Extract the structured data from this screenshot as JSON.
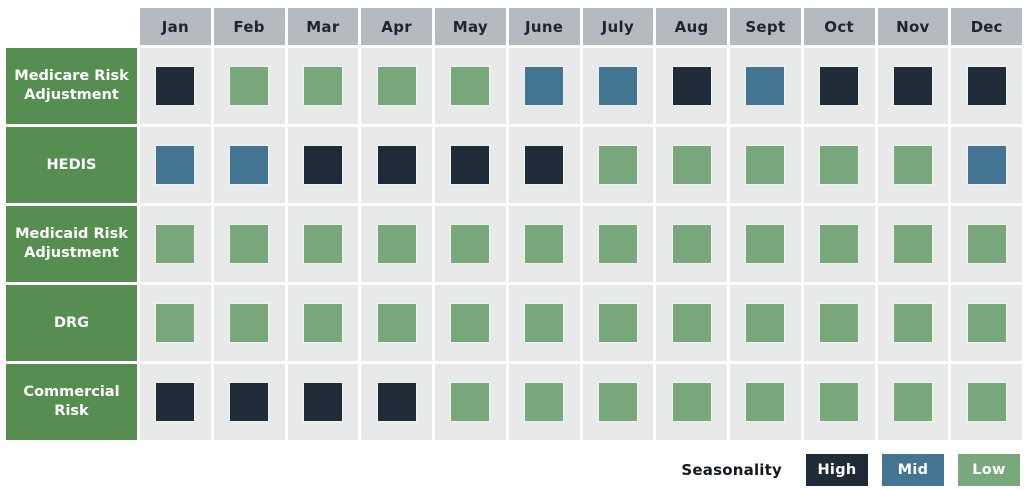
{
  "chart_data": {
    "type": "heatmap",
    "title": "Seasonality",
    "columns": [
      "Jan",
      "Feb",
      "Mar",
      "Apr",
      "May",
      "June",
      "July",
      "Aug",
      "Sept",
      "Oct",
      "Nov",
      "Dec"
    ],
    "rows": [
      {
        "name": "Medicare Risk Adjustment",
        "values": [
          "High",
          "Low",
          "Low",
          "Low",
          "Low",
          "Mid",
          "Mid",
          "High",
          "Mid",
          "High",
          "High",
          "High"
        ]
      },
      {
        "name": "HEDIS",
        "values": [
          "Mid",
          "Mid",
          "High",
          "High",
          "High",
          "High",
          "Low",
          "Low",
          "Low",
          "Low",
          "Low",
          "Mid"
        ]
      },
      {
        "name": "Medicaid Risk Adjustment",
        "values": [
          "Low",
          "Low",
          "Low",
          "Low",
          "Low",
          "Low",
          "Low",
          "Low",
          "Low",
          "Low",
          "Low",
          "Low"
        ]
      },
      {
        "name": "DRG",
        "values": [
          "Low",
          "Low",
          "Low",
          "Low",
          "Low",
          "Low",
          "Low",
          "Low",
          "Low",
          "Low",
          "Low",
          "Low"
        ]
      },
      {
        "name": "Commercial Risk",
        "values": [
          "High",
          "High",
          "High",
          "High",
          "Low",
          "Low",
          "Low",
          "Low",
          "Low",
          "Low",
          "Low",
          "Low"
        ]
      }
    ],
    "legend": {
      "title": "Seasonality",
      "items": [
        {
          "label": "High",
          "color": "#1f2c37"
        },
        {
          "label": "Mid",
          "color": "#437592"
        },
        {
          "label": "Low",
          "color": "#7aa87d"
        }
      ]
    },
    "layout": {
      "grid": "off",
      "legend_position": "bottom-right"
    }
  },
  "colors": {
    "high": "#1f2c37",
    "mid": "#437592",
    "low": "#7aa87d",
    "header_bg": "#b5bac1",
    "header_text": "#1d2530",
    "label_bg": "#568e52",
    "cell_bg": "#e8eaea"
  },
  "legend": {
    "title": "Seasonality"
  }
}
